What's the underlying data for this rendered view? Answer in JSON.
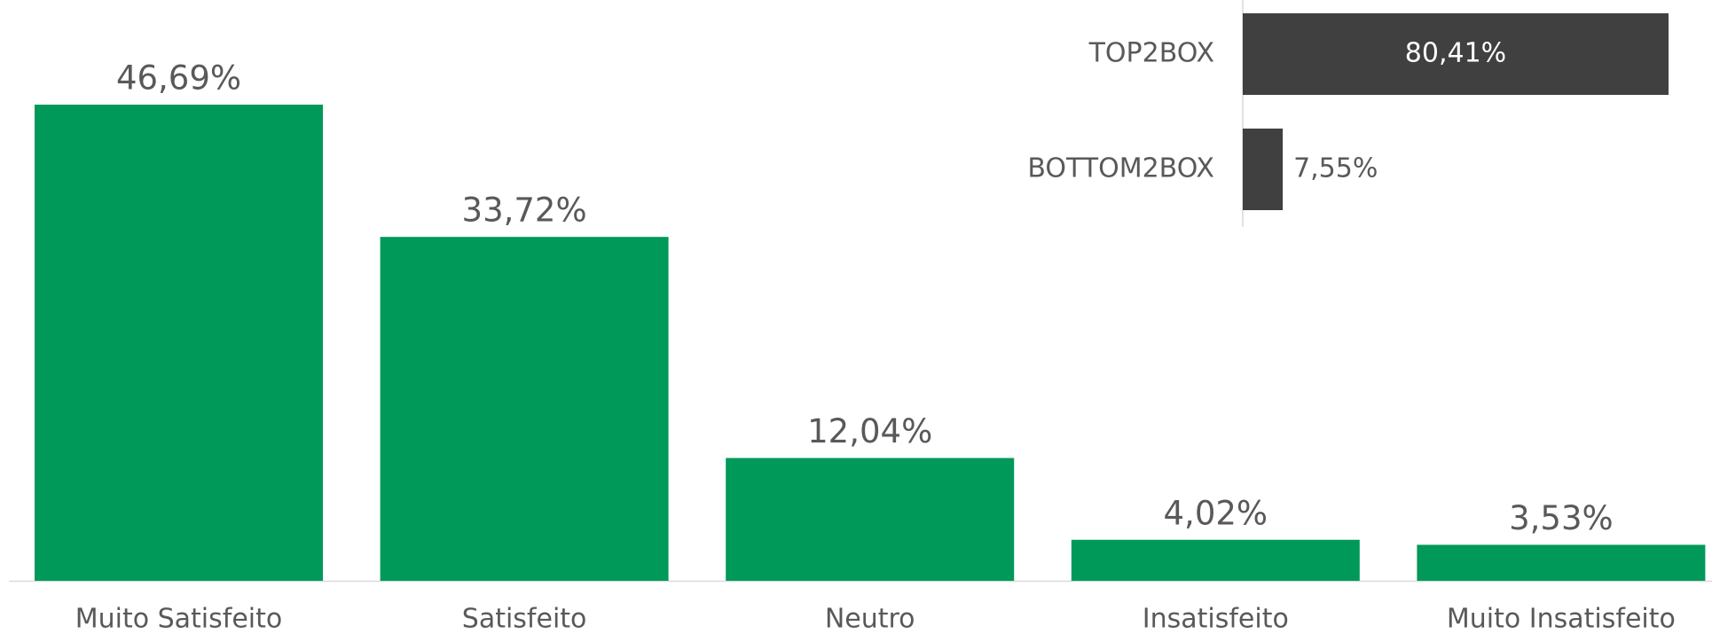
{
  "chart_data": [
    {
      "type": "bar",
      "categories": [
        "Muito Satisfeito",
        "Satisfeito",
        "Neutro",
        "Insatisfeito",
        "Muito Insatisfeito"
      ],
      "values": [
        46.69,
        33.72,
        12.04,
        4.02,
        3.53
      ],
      "value_labels": [
        "46,69%",
        "33,72%",
        "12,04%",
        "4,02%",
        "3,53%"
      ],
      "color": "#009959"
    },
    {
      "type": "hbar",
      "categories": [
        "TOP2BOX",
        "BOTTOM2BOX"
      ],
      "values": [
        80.41,
        7.55
      ],
      "value_labels": [
        "80,41%",
        "7,55%"
      ],
      "color": "#404040"
    }
  ]
}
